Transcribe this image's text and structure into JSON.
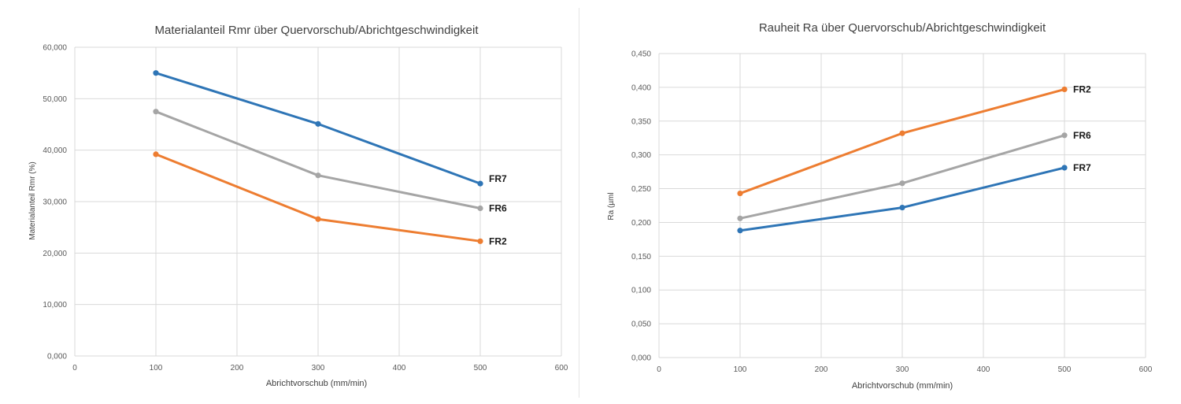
{
  "chart_data": [
    {
      "type": "line",
      "title": "Materialanteil Rmr über Quervorschub/Abrichtgeschwindigkeit",
      "xlabel": "Abrichtvorschub (mm/min)",
      "ylabel": "Materialanteil Rmr (%)",
      "xlim": [
        0,
        600
      ],
      "ylim": [
        0,
        60
      ],
      "x_ticks": [
        "0",
        "100",
        "200",
        "300",
        "400",
        "500",
        "600"
      ],
      "y_ticks": [
        "0,000",
        "10,000",
        "20,000",
        "30,000",
        "40,000",
        "50,000",
        "60,000"
      ],
      "grid": true,
      "series": [
        {
          "name": "FR7",
          "color": "#2e75b6",
          "x": [
            100,
            300,
            500
          ],
          "values": [
            55.0,
            45.1,
            33.5
          ]
        },
        {
          "name": "FR6",
          "color": "#a5a5a5",
          "x": [
            100,
            300,
            500
          ],
          "values": [
            47.5,
            35.1,
            28.7
          ]
        },
        {
          "name": "FR2",
          "color": "#ed7d31",
          "x": [
            100,
            300,
            500
          ],
          "values": [
            39.2,
            26.6,
            22.3
          ]
        }
      ]
    },
    {
      "type": "line",
      "title": "Rauheit Ra über Quervorschub/Abrichtgeschwindigkeit",
      "xlabel": "Abrichtvorschub (mm/min)",
      "ylabel": "Ra (µml",
      "xlim": [
        0,
        600
      ],
      "ylim": [
        0,
        0.45
      ],
      "x_ticks": [
        "0",
        "100",
        "200",
        "300",
        "400",
        "500",
        "600"
      ],
      "y_ticks": [
        "0,000",
        "0,050",
        "0,100",
        "0,150",
        "0,200",
        "0,250",
        "0,300",
        "0,350",
        "0,400",
        "0,450"
      ],
      "grid": true,
      "series": [
        {
          "name": "FR2",
          "color": "#ed7d31",
          "x": [
            100,
            300,
            500
          ],
          "values": [
            0.243,
            0.332,
            0.397
          ]
        },
        {
          "name": "FR6",
          "color": "#a5a5a5",
          "x": [
            100,
            300,
            500
          ],
          "values": [
            0.206,
            0.258,
            0.329
          ]
        },
        {
          "name": "FR7",
          "color": "#2e75b6",
          "x": [
            100,
            300,
            500
          ],
          "values": [
            0.188,
            0.222,
            0.281
          ]
        }
      ]
    }
  ]
}
